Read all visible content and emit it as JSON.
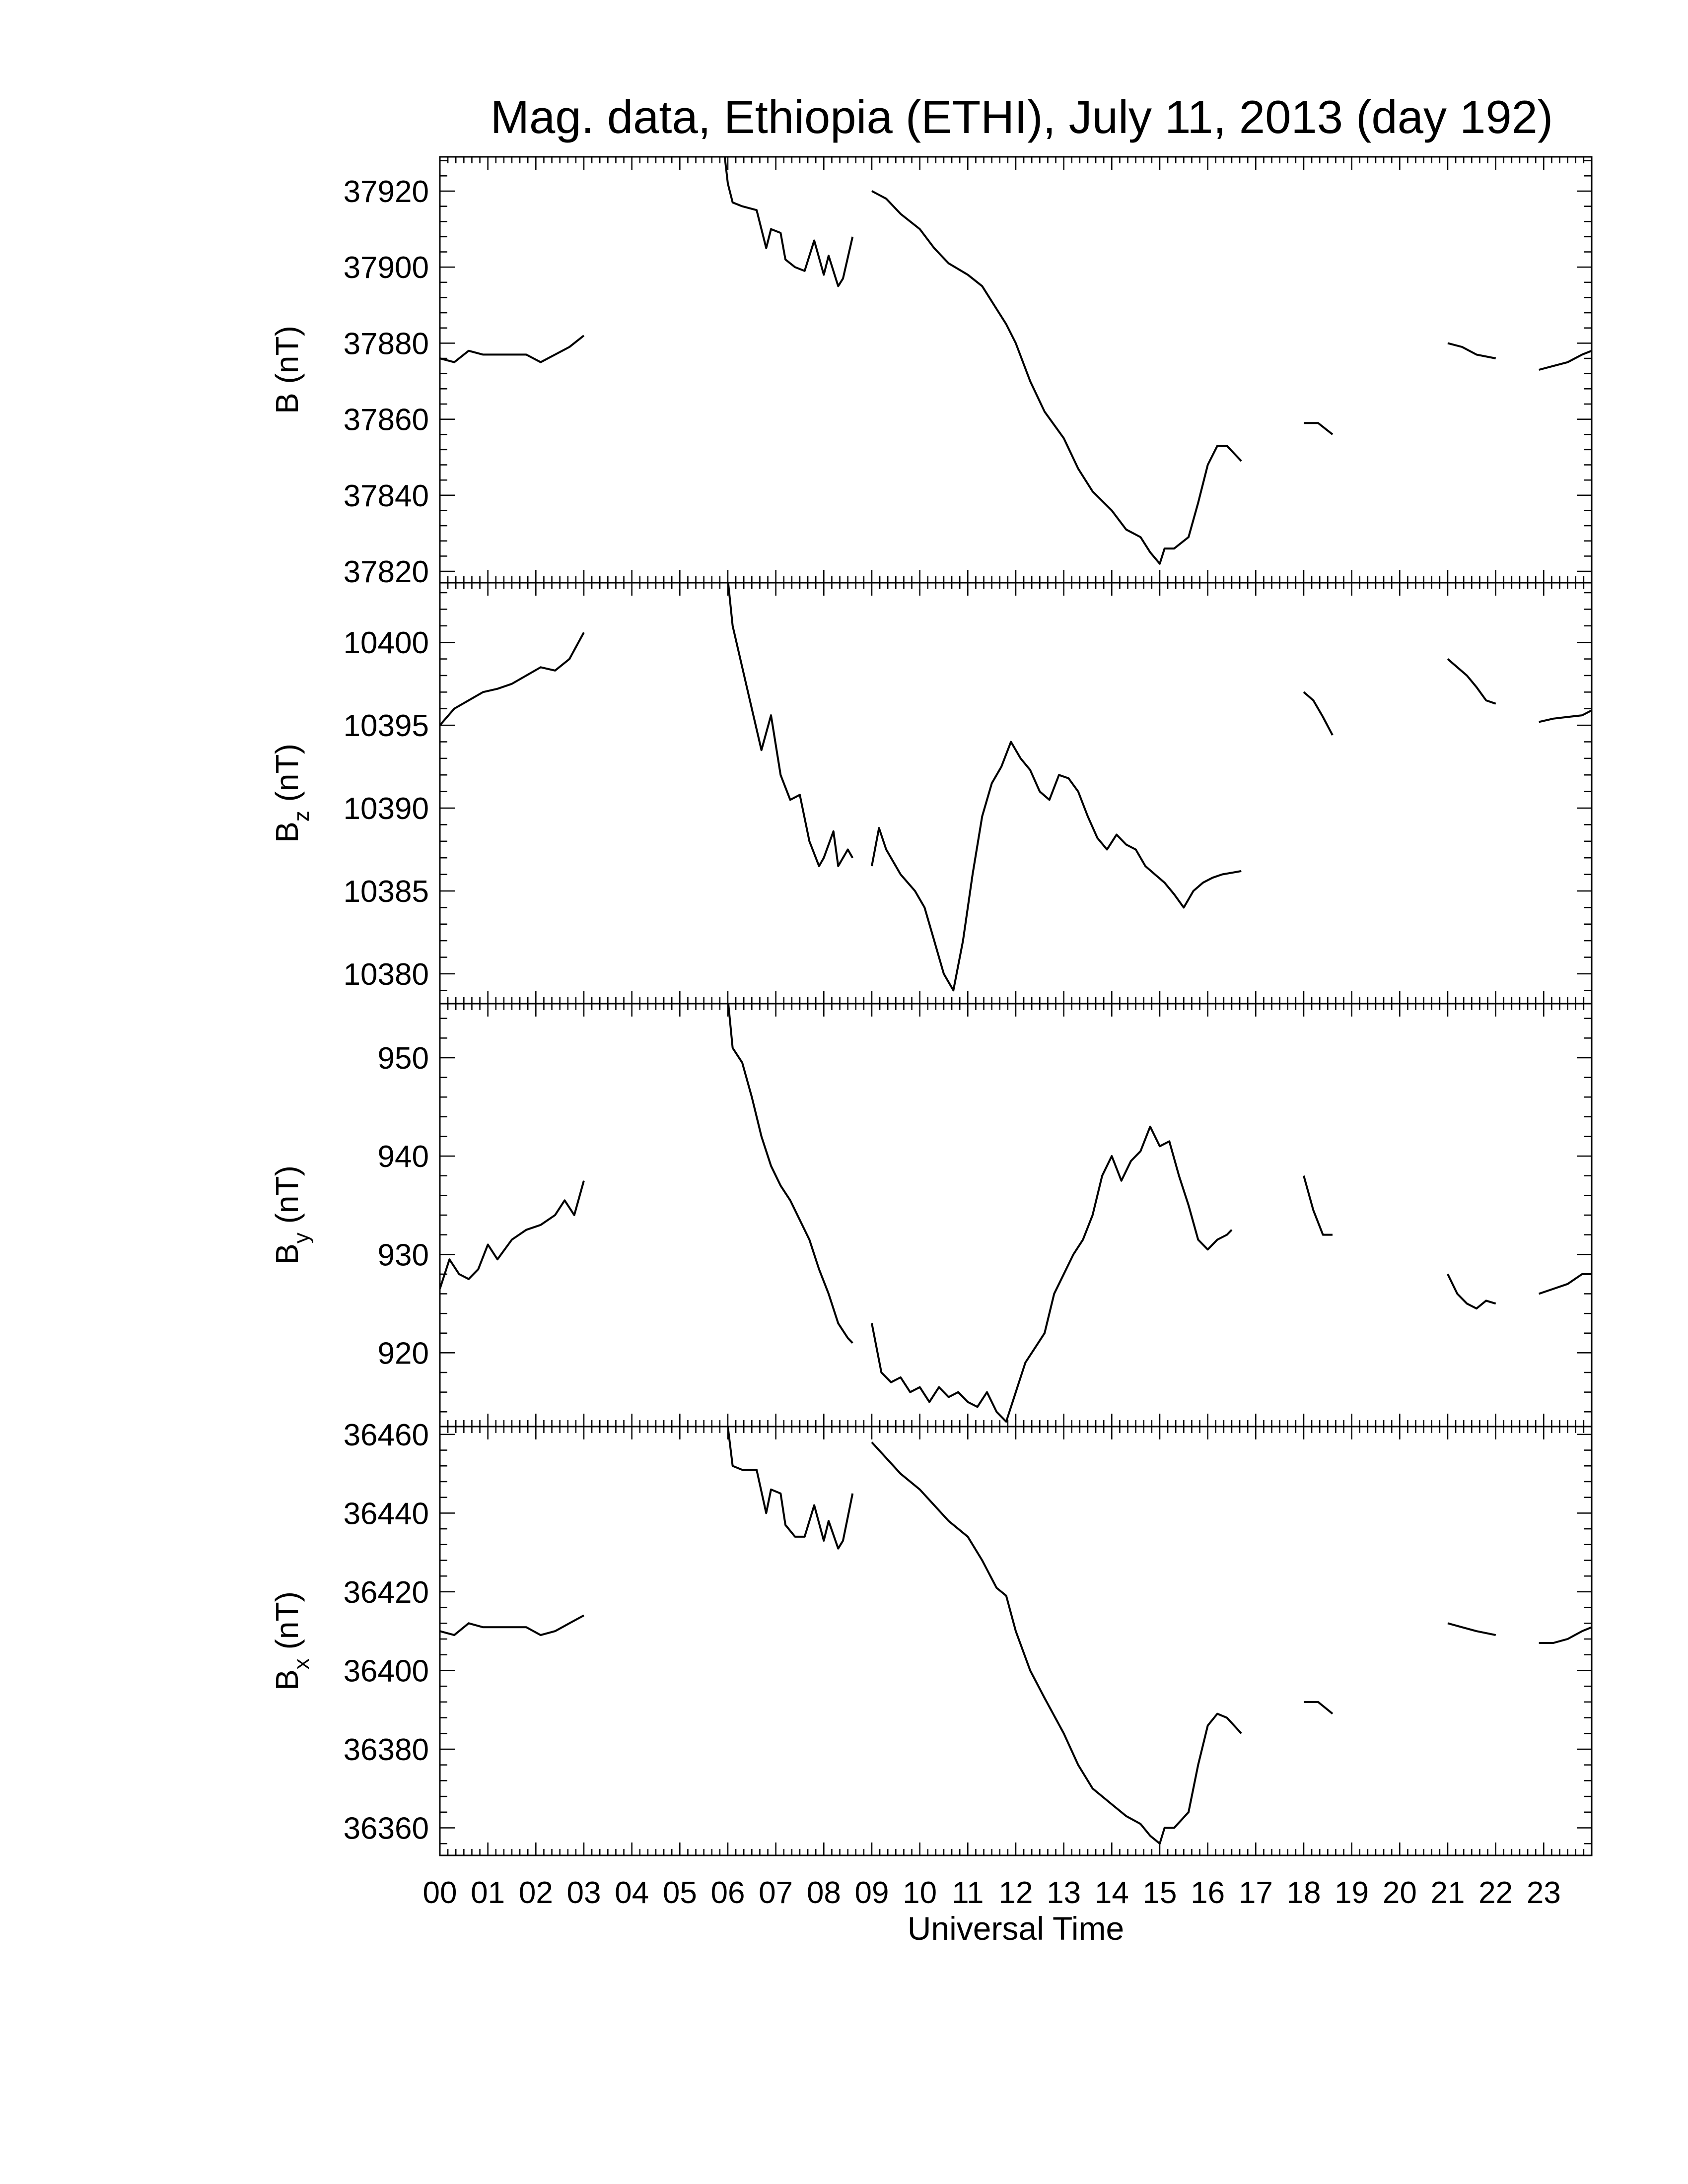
{
  "chart_data": [
    {
      "type": "line",
      "title": "Mag. data, Ethiopia (ETHI), July 11, 2013 (day 192)",
      "ylabel": "B (nT)",
      "ylabel_sub": "",
      "ylim": [
        37817,
        37929
      ],
      "yticks": [
        37820,
        37840,
        37860,
        37880,
        37900,
        37920
      ],
      "xlim": [
        0,
        24
      ],
      "series": [
        {
          "x": [
            0.0,
            0.3,
            0.6,
            0.9,
            1.2,
            1.5,
            1.8,
            2.1,
            2.4,
            2.7,
            3.0
          ],
          "y": [
            37876,
            37875,
            37878,
            37877,
            37877,
            37877,
            37877,
            37875,
            37877,
            37879,
            37882
          ]
        },
        {
          "x": [
            5.9,
            6.0,
            6.1,
            6.3,
            6.6,
            6.8,
            6.9,
            7.1,
            7.2,
            7.4,
            7.6,
            7.8,
            8.0,
            8.1,
            8.3,
            8.4,
            8.6
          ],
          "y": [
            37933,
            37922,
            37917,
            37916,
            37915,
            37905,
            37910,
            37909,
            37902,
            37900,
            37899,
            37907,
            37898,
            37903,
            37895,
            37897,
            37908
          ]
        },
        {
          "x": [
            9.0,
            9.3,
            9.6,
            10.0,
            10.3,
            10.6,
            11.0,
            11.3,
            11.6,
            11.8,
            12.0,
            12.3,
            12.6,
            13.0,
            13.3,
            13.6,
            14.0,
            14.3,
            14.6,
            14.8,
            15.0,
            15.1,
            15.3,
            15.6,
            15.8,
            16.0,
            16.2,
            16.4,
            16.7
          ],
          "y": [
            37920,
            37918,
            37914,
            37910,
            37905,
            37901,
            37898,
            37895,
            37889,
            37885,
            37880,
            37870,
            37862,
            37855,
            37847,
            37841,
            37836,
            37831,
            37829,
            37825,
            37822,
            37826,
            37826,
            37829,
            37838,
            37848,
            37853,
            37853,
            37849
          ]
        },
        {
          "x": [
            18.0,
            18.3,
            18.6
          ],
          "y": [
            37859,
            37859,
            37856
          ]
        },
        {
          "x": [
            21.0,
            21.3,
            21.6,
            22.0
          ],
          "y": [
            37880,
            37879,
            37877,
            37876
          ]
        },
        {
          "x": [
            22.9,
            23.2,
            23.5,
            23.8,
            24.0
          ],
          "y": [
            37873,
            37874,
            37875,
            37877,
            37878
          ]
        }
      ]
    },
    {
      "type": "line",
      "title": "",
      "ylabel": "B",
      "ylabel_sub": "z",
      "ylabel_unit": " (nT)",
      "ylim": [
        10378.2,
        10403.6
      ],
      "yticks": [
        10380,
        10385,
        10390,
        10395,
        10400
      ],
      "xlim": [
        0,
        24
      ],
      "series": [
        {
          "x": [
            0.0,
            0.3,
            0.6,
            0.9,
            1.2,
            1.5,
            1.8,
            2.1,
            2.4,
            2.7,
            3.0
          ],
          "y": [
            10395.0,
            10396.0,
            10396.5,
            10397.0,
            10397.2,
            10397.5,
            10398.0,
            10398.5,
            10398.3,
            10399.0,
            10400.6
          ]
        },
        {
          "x": [
            6.0,
            6.1,
            6.3,
            6.5,
            6.7,
            6.9,
            7.1,
            7.3,
            7.5,
            7.7,
            7.9,
            8.0,
            8.2,
            8.3,
            8.5,
            8.6
          ],
          "y": [
            10403.8,
            10401,
            10398.5,
            10396,
            10393.5,
            10395.6,
            10392,
            10390.5,
            10390.8,
            10388,
            10386.5,
            10387,
            10388.6,
            10386.5,
            10387.5,
            10387.0
          ]
        },
        {
          "x": [
            9.0,
            9.15,
            9.3,
            9.6,
            9.9,
            10.1,
            10.3,
            10.5,
            10.7,
            10.9,
            11.1,
            11.3,
            11.5,
            11.7,
            11.9,
            12.1,
            12.3,
            12.5,
            12.7,
            12.9,
            13.1,
            13.3,
            13.5,
            13.7,
            13.9,
            14.1,
            14.3,
            14.5,
            14.7,
            14.9,
            15.1,
            15.3,
            15.5,
            15.7,
            15.9,
            16.1,
            16.3,
            16.5,
            16.7
          ],
          "y": [
            10386.5,
            10388.8,
            10387.5,
            10386.0,
            10385.0,
            10384.0,
            10382.0,
            10380.0,
            10379.0,
            10382.0,
            10386.0,
            10389.5,
            10391.5,
            10392.5,
            10394.0,
            10393.0,
            10392.3,
            10391.0,
            10390.5,
            10392.0,
            10391.8,
            10391.0,
            10389.5,
            10388.2,
            10387.5,
            10388.4,
            10387.8,
            10387.5,
            10386.5,
            10386.0,
            10385.5,
            10384.8,
            10384.0,
            10385.0,
            10385.5,
            10385.8,
            10386.0,
            10386.1,
            10386.2
          ]
        },
        {
          "x": [
            18.0,
            18.2,
            18.4,
            18.6
          ],
          "y": [
            10397.0,
            10396.5,
            10395.5,
            10394.4
          ]
        },
        {
          "x": [
            21.0,
            21.2,
            21.4,
            21.6,
            21.8,
            22.0
          ],
          "y": [
            10399.0,
            10398.5,
            10398.0,
            10397.3,
            10396.5,
            10396.3
          ]
        },
        {
          "x": [
            22.9,
            23.2,
            23.5,
            23.8,
            24.0
          ],
          "y": [
            10395.2,
            10395.4,
            10395.5,
            10395.6,
            10395.9
          ]
        }
      ]
    },
    {
      "type": "line",
      "title": "",
      "ylabel": "B",
      "ylabel_sub": "y",
      "ylabel_unit": " (nT)",
      "ylim": [
        912.5,
        955.5
      ],
      "yticks": [
        920,
        930,
        940,
        950
      ],
      "xlim": [
        0,
        24
      ],
      "series": [
        {
          "x": [
            0.0,
            0.2,
            0.4,
            0.6,
            0.8,
            1.0,
            1.2,
            1.5,
            1.8,
            2.1,
            2.4,
            2.6,
            2.8,
            3.0
          ],
          "y": [
            926.5,
            929.5,
            928.0,
            927.5,
            928.5,
            931.0,
            929.5,
            931.5,
            932.5,
            933.0,
            934.0,
            935.5,
            934.0,
            937.5
          ]
        },
        {
          "x": [
            6.0,
            6.1,
            6.3,
            6.5,
            6.7,
            6.9,
            7.1,
            7.3,
            7.5,
            7.7,
            7.9,
            8.1,
            8.3,
            8.5,
            8.6
          ],
          "y": [
            956.0,
            951.0,
            949.5,
            946.0,
            942.0,
            939.0,
            937.0,
            935.5,
            933.5,
            931.5,
            928.5,
            926.0,
            923.0,
            921.5,
            921.0
          ]
        },
        {
          "x": [
            9.0,
            9.2,
            9.4,
            9.6,
            9.8,
            10.0,
            10.2,
            10.4,
            10.6,
            10.8,
            11.0,
            11.2,
            11.4,
            11.6,
            11.8,
            12.0,
            12.2,
            12.4,
            12.6,
            12.8,
            13.0,
            13.2,
            13.4,
            13.6,
            13.8,
            14.0,
            14.2,
            14.4,
            14.6,
            14.8,
            15.0,
            15.2,
            15.4,
            15.6,
            15.8,
            16.0,
            16.2,
            16.4,
            16.5
          ],
          "y": [
            923.0,
            918.0,
            917.0,
            917.5,
            916.0,
            916.5,
            915.0,
            916.5,
            915.5,
            916.0,
            915.0,
            914.5,
            916.0,
            914.0,
            913.0,
            916.0,
            919.0,
            920.5,
            922.0,
            926.0,
            928.0,
            930.0,
            931.5,
            934.0,
            938.0,
            940.0,
            937.5,
            939.5,
            940.5,
            943.0,
            941.0,
            941.5,
            938.0,
            935.0,
            931.5,
            930.5,
            931.5,
            932.0,
            932.5
          ]
        },
        {
          "x": [
            18.0,
            18.2,
            18.4,
            18.6
          ],
          "y": [
            938.0,
            934.5,
            932.0,
            932.0
          ]
        },
        {
          "x": [
            21.0,
            21.2,
            21.4,
            21.6,
            21.8,
            22.0
          ],
          "y": [
            928.0,
            926.0,
            925.0,
            924.5,
            925.3,
            925.0
          ]
        },
        {
          "x": [
            22.9,
            23.2,
            23.5,
            23.8,
            24.0
          ],
          "y": [
            926.0,
            926.5,
            927.0,
            928.0,
            928.0
          ]
        }
      ]
    },
    {
      "type": "line",
      "title": "",
      "ylabel": "B",
      "ylabel_sub": "x",
      "ylabel_unit": " (nT)",
      "ylim": [
        36353,
        36462
      ],
      "yticks": [
        36360,
        36380,
        36400,
        36420,
        36440,
        36460
      ],
      "xlim": [
        0,
        24
      ],
      "xticklabels": [
        "00",
        "01",
        "02",
        "03",
        "04",
        "05",
        "06",
        "07",
        "08",
        "09",
        "10",
        "11",
        "12",
        "13",
        "14",
        "15",
        "16",
        "17",
        "18",
        "19",
        "20",
        "21",
        "22",
        "23"
      ],
      "xlabel": "Universal Time",
      "series": [
        {
          "x": [
            0.0,
            0.3,
            0.6,
            0.9,
            1.2,
            1.5,
            1.8,
            2.1,
            2.4,
            2.7,
            3.0
          ],
          "y": [
            36410,
            36409,
            36412,
            36411,
            36411,
            36411,
            36411,
            36409,
            36410,
            36412,
            36414
          ]
        },
        {
          "x": [
            6.0,
            6.1,
            6.3,
            6.6,
            6.8,
            6.9,
            7.1,
            7.2,
            7.4,
            7.6,
            7.8,
            8.0,
            8.1,
            8.3,
            8.4,
            8.6
          ],
          "y": [
            36462,
            36452,
            36451,
            36451,
            36440,
            36446,
            36445,
            36437,
            36434,
            36434,
            36442,
            36433,
            36438,
            36431,
            36433,
            36445
          ]
        },
        {
          "x": [
            9.0,
            9.3,
            9.6,
            10.0,
            10.3,
            10.6,
            11.0,
            11.3,
            11.6,
            11.8,
            12.0,
            12.3,
            12.6,
            13.0,
            13.3,
            13.6,
            14.0,
            14.3,
            14.6,
            14.8,
            15.0,
            15.1,
            15.3,
            15.6,
            15.8,
            16.0,
            16.2,
            16.4,
            16.7
          ],
          "y": [
            36458,
            36454,
            36450,
            36446,
            36442,
            36438,
            36434,
            36428,
            36421,
            36419,
            36410,
            36400,
            36393,
            36384,
            36376,
            36370,
            36366,
            36363,
            36361,
            36358,
            36356,
            36360,
            36360,
            36364,
            36376,
            36386,
            36389,
            36388,
            36384
          ]
        },
        {
          "x": [
            18.0,
            18.3,
            18.6
          ],
          "y": [
            36392,
            36392,
            36389
          ]
        },
        {
          "x": [
            21.0,
            21.3,
            21.6,
            22.0
          ],
          "y": [
            36412,
            36411,
            36410,
            36409
          ]
        },
        {
          "x": [
            22.9,
            23.2,
            23.5,
            23.8,
            24.0
          ],
          "y": [
            36407,
            36407,
            36408,
            36410,
            36411
          ]
        }
      ]
    }
  ]
}
